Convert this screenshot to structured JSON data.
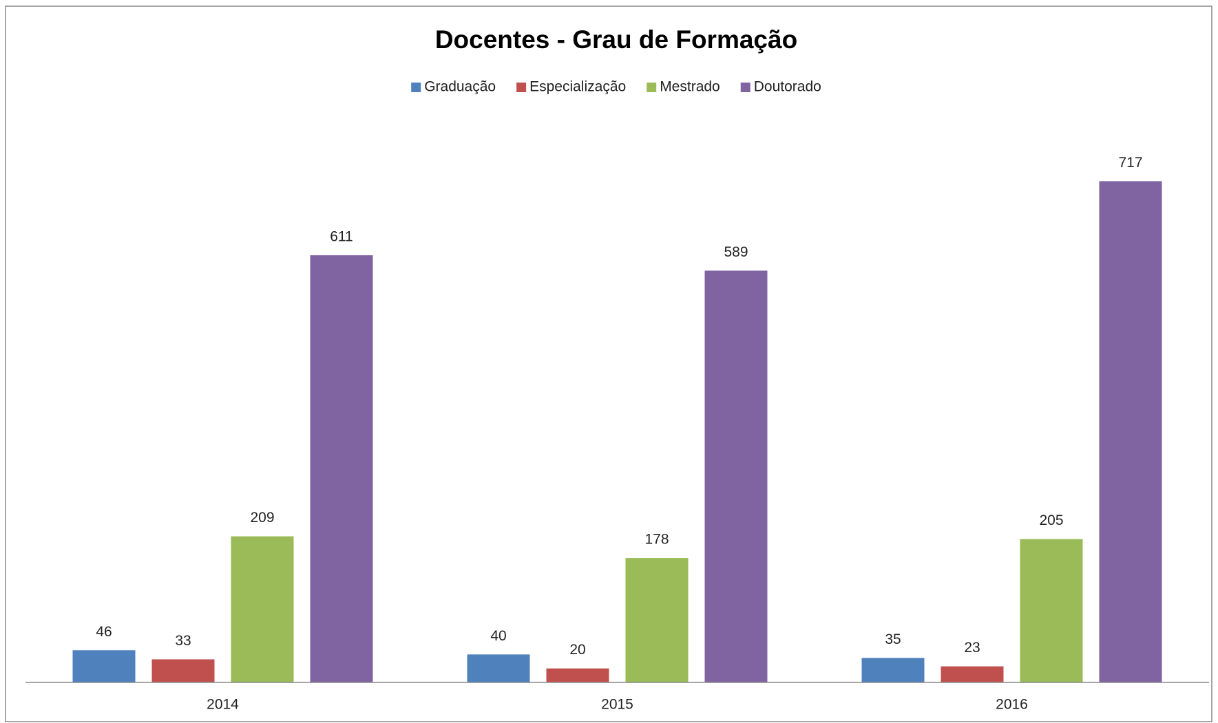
{
  "chart_data": {
    "type": "bar",
    "title": "Docentes - Grau de Formação",
    "categories": [
      "2014",
      "2015",
      "2016"
    ],
    "series": [
      {
        "name": "Graduação",
        "color": "#4f81bd",
        "values": [
          46,
          40,
          35
        ]
      },
      {
        "name": "Especialização",
        "color": "#c0504d",
        "values": [
          33,
          20,
          23
        ]
      },
      {
        "name": "Mestrado",
        "color": "#9bbb59",
        "values": [
          209,
          178,
          205
        ]
      },
      {
        "name": "Doutorado",
        "color": "#8064a2",
        "values": [
          611,
          589,
          717
        ]
      }
    ],
    "ylim": [
      0,
      800
    ],
    "legend": "top"
  }
}
